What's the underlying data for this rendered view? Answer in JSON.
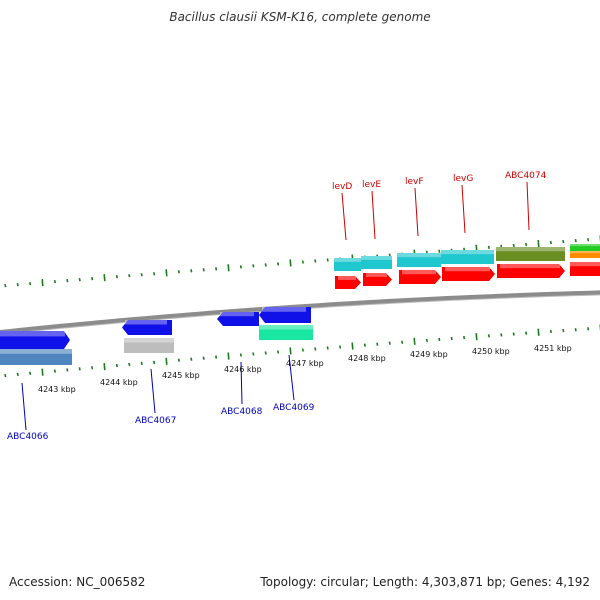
{
  "title": "Bacillus clausii KSM-K16, complete genome",
  "footer": {
    "accession": "Accession: NC_006582",
    "summary": "Topology: circular; Length: 4,303,871 bp; Genes: 4,192"
  },
  "colors": {
    "backbone": "#8c8c8c",
    "tick": "#1e7a1e",
    "label_forward": "#cc0000",
    "label_reverse": "#0000bb",
    "cyan": "#1fc7cf",
    "red": "#ff0000",
    "blue": "#1010e8",
    "steel": "#4f86bf",
    "gray": "#bdbdbd",
    "teal": "#19e6a0",
    "olive": "#6b8e23",
    "green": "#22cc22",
    "orange": "#ff8c00"
  },
  "kbp_labels": [
    {
      "kbp": 4243,
      "text": "4243 kbp"
    },
    {
      "kbp": 4244,
      "text": "4244 kbp"
    },
    {
      "kbp": 4245,
      "text": "4245 kbp"
    },
    {
      "kbp": 4246,
      "text": "4246 kbp"
    },
    {
      "kbp": 4247,
      "text": "4247 kbp"
    },
    {
      "kbp": 4248,
      "text": "4248 kbp"
    },
    {
      "kbp": 4249,
      "text": "4249 kbp"
    },
    {
      "kbp": 4250,
      "text": "4250 kbp"
    },
    {
      "kbp": 4251,
      "text": "4251 kbp"
    }
  ],
  "forward_labels": [
    "levD",
    "levE",
    "levF",
    "levG",
    "ABC4074"
  ],
  "reverse_labels": [
    "ABC4066",
    "ABC4067",
    "ABC4068",
    "ABC4069"
  ]
}
